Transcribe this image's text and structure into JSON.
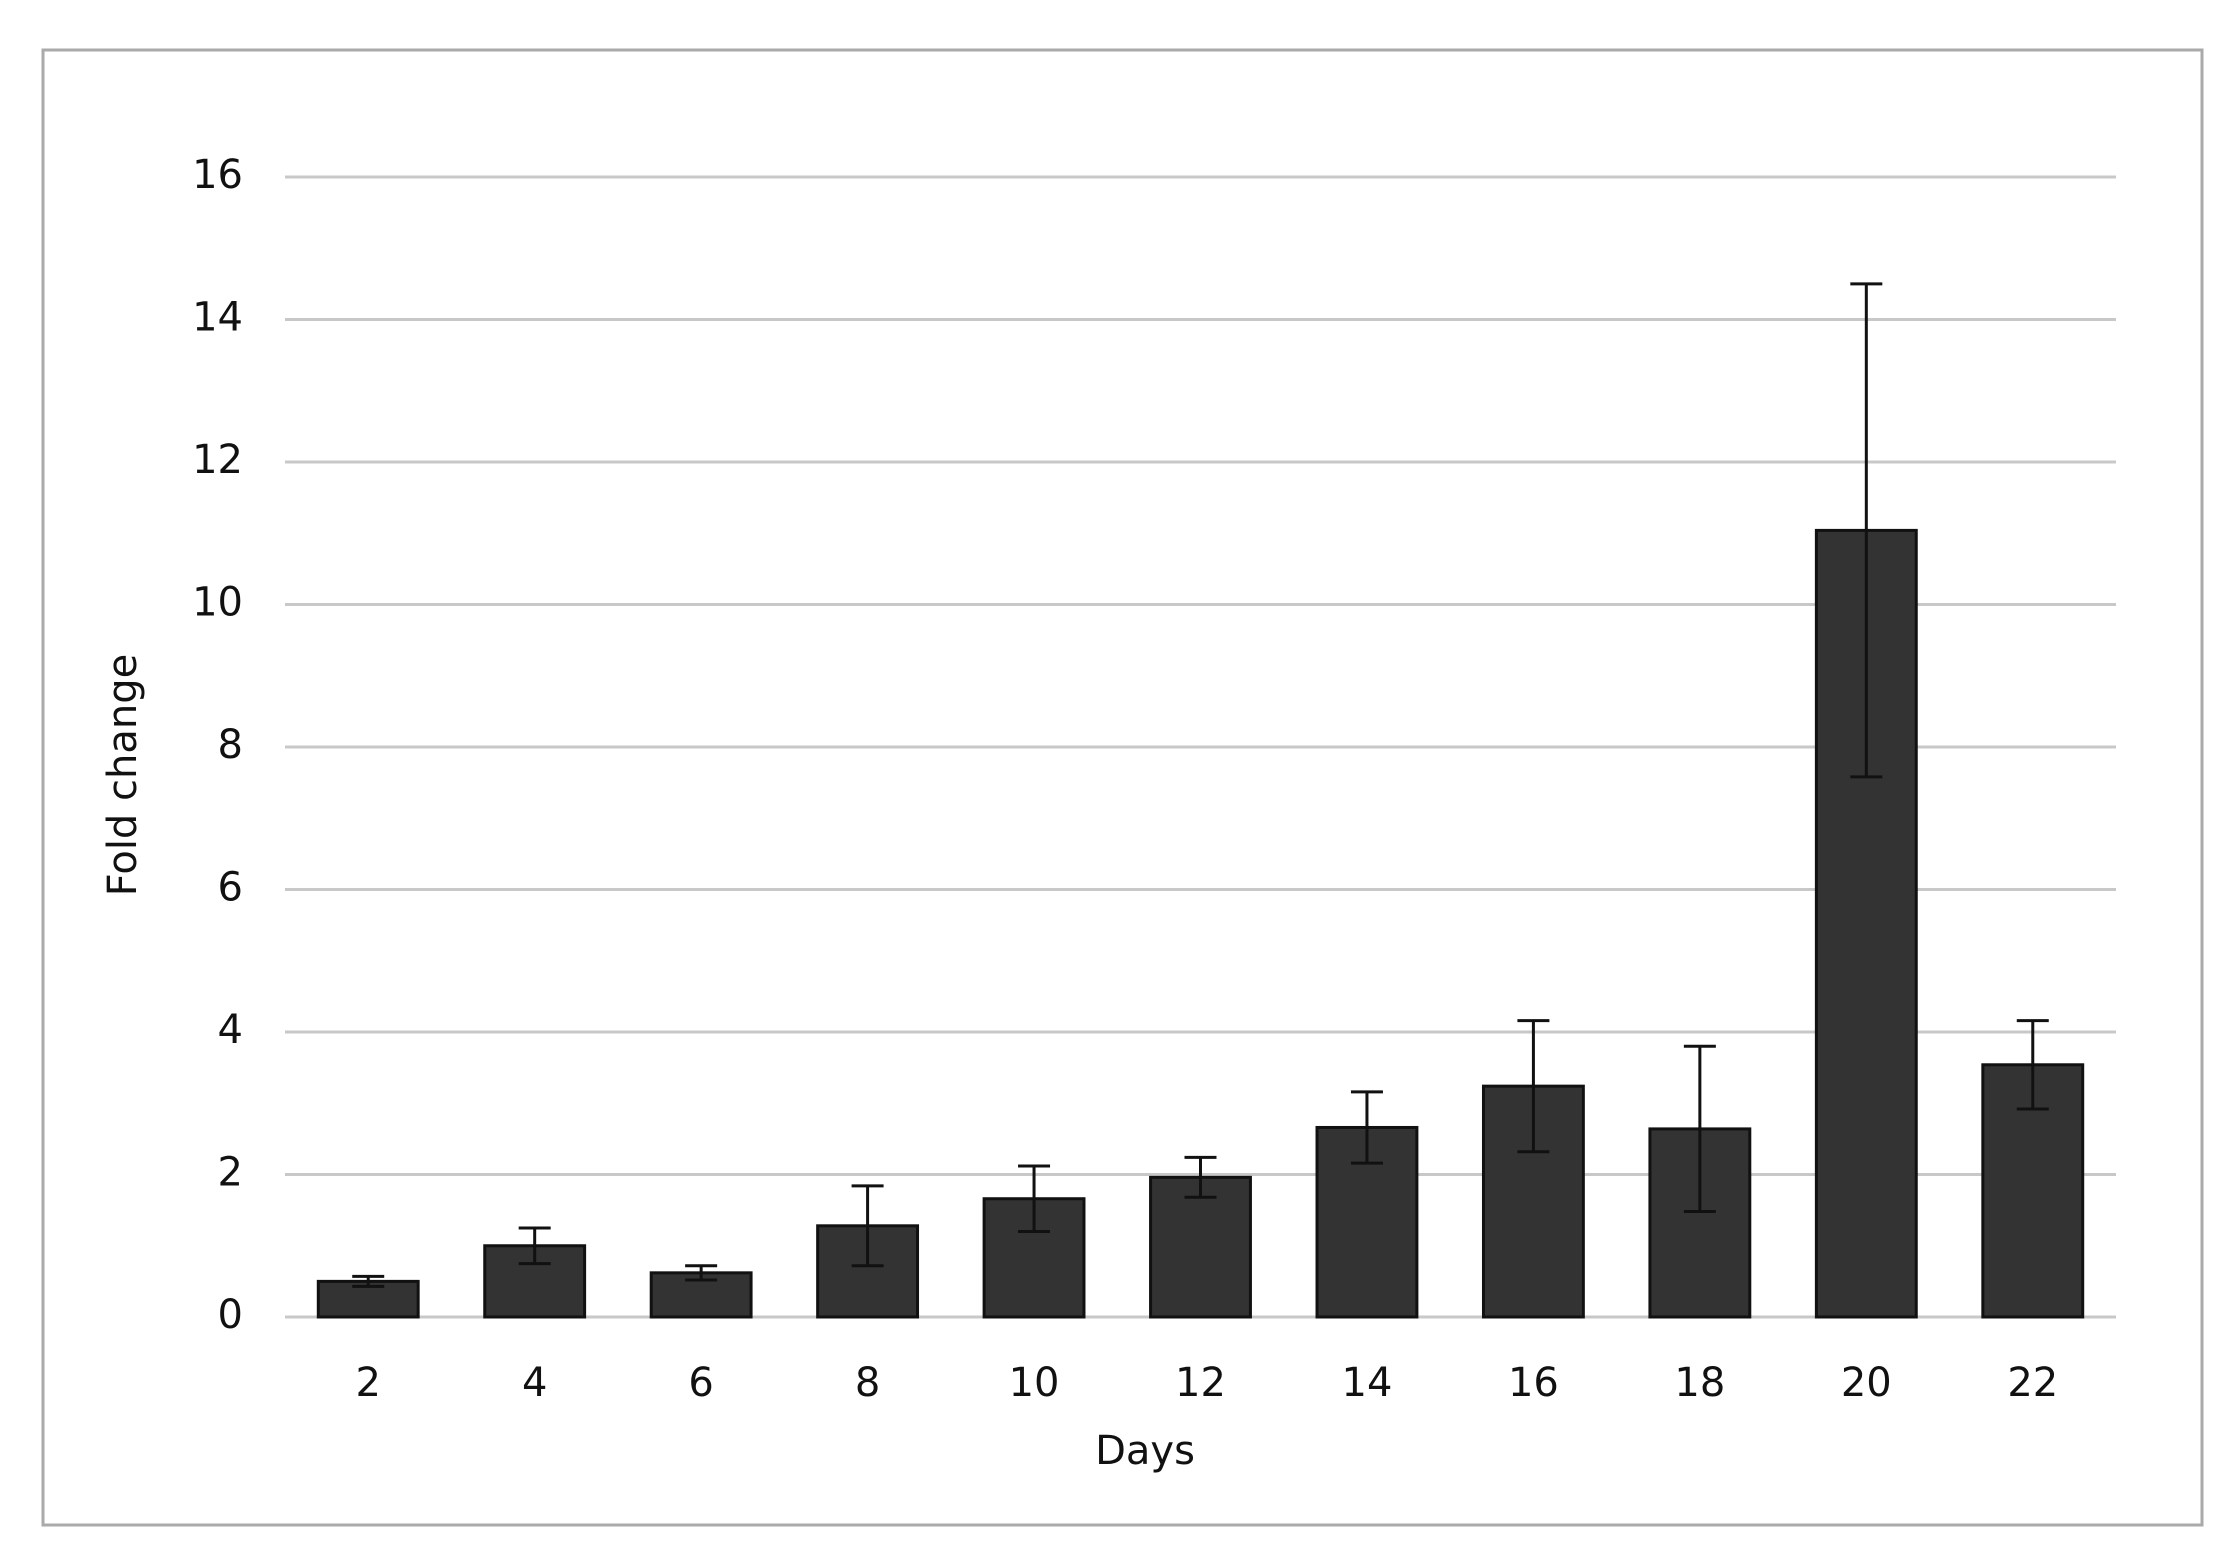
{
  "chart_data": {
    "type": "bar",
    "categories": [
      "2",
      "4",
      "6",
      "8",
      "10",
      "12",
      "14",
      "16",
      "18",
      "20",
      "22"
    ],
    "values": [
      0.5,
      1.0,
      0.62,
      1.28,
      1.66,
      1.96,
      2.66,
      3.24,
      2.64,
      11.04,
      3.54
    ],
    "errors": [
      0.07,
      0.25,
      0.1,
      0.56,
      0.46,
      0.28,
      0.5,
      0.92,
      1.16,
      3.46,
      0.62
    ],
    "color": "#333333",
    "ylim": [
      0,
      16
    ],
    "yticks": [
      0,
      2,
      4,
      6,
      8,
      10,
      12,
      14,
      16
    ],
    "grid": true,
    "x_label": "Days",
    "y_label": "Fold change"
  }
}
